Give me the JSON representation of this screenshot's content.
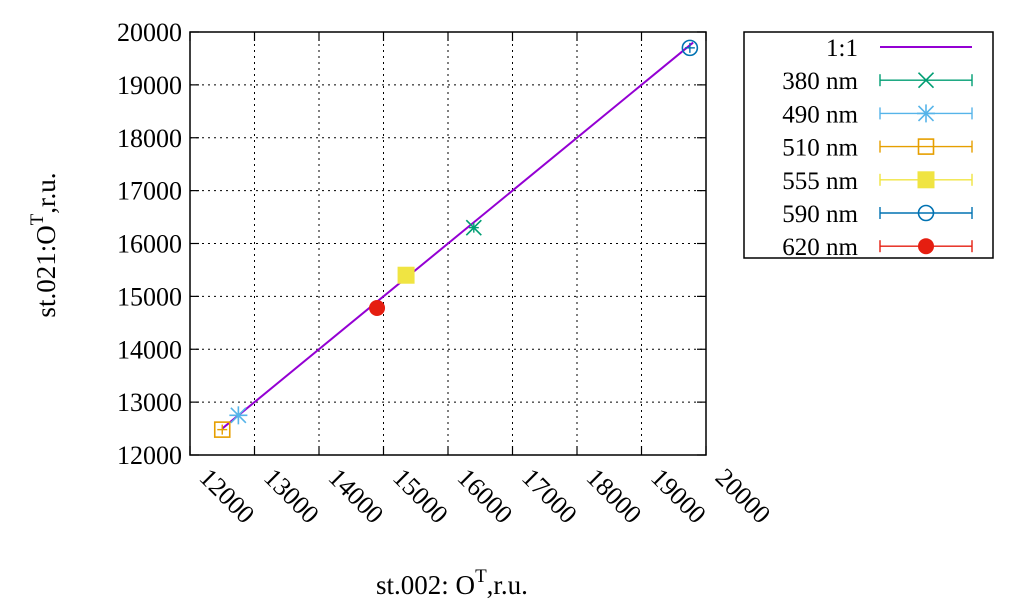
{
  "chart_data": {
    "type": "scatter",
    "xlabel": "st.002: O",
    "xlabel_sup": "T",
    "xlabel_suffix": ",r.u.",
    "ylabel": "st.021:O",
    "ylabel_sup": "T",
    "ylabel_suffix": ",r.u.",
    "xlim": [
      12000,
      20000
    ],
    "ylim": [
      12000,
      20000
    ],
    "xticks": [
      "12000",
      "13000",
      "14000",
      "15000",
      "16000",
      "17000",
      "18000",
      "19000",
      "20000"
    ],
    "yticks": [
      "12000",
      "13000",
      "14000",
      "15000",
      "16000",
      "17000",
      "18000",
      "19000",
      "20000"
    ],
    "grid": true,
    "legend_position": "outside-right",
    "line": {
      "name": "1:1",
      "color": "#9400d3",
      "points": [
        [
          12500,
          12500
        ],
        [
          19800,
          19800
        ]
      ]
    },
    "series": [
      {
        "name": "380 nm",
        "marker": "x",
        "color": "#009e73",
        "points": [
          [
            16400,
            16300
          ]
        ]
      },
      {
        "name": "490 nm",
        "marker": "star",
        "color": "#56b4e9",
        "points": [
          [
            12750,
            12750
          ]
        ]
      },
      {
        "name": "510 nm",
        "marker": "square-open",
        "color": "#e69f00",
        "points": [
          [
            12500,
            12480
          ]
        ]
      },
      {
        "name": "555 nm",
        "marker": "square-filled",
        "color": "#f0e442",
        "points": [
          [
            15350,
            15400
          ]
        ]
      },
      {
        "name": "590 nm",
        "marker": "circle-open",
        "color": "#0072b2",
        "points": [
          [
            19750,
            19700
          ]
        ]
      },
      {
        "name": "620 nm",
        "marker": "circle-filled",
        "color": "#e51e10",
        "points": [
          [
            14900,
            14780
          ]
        ]
      }
    ]
  }
}
